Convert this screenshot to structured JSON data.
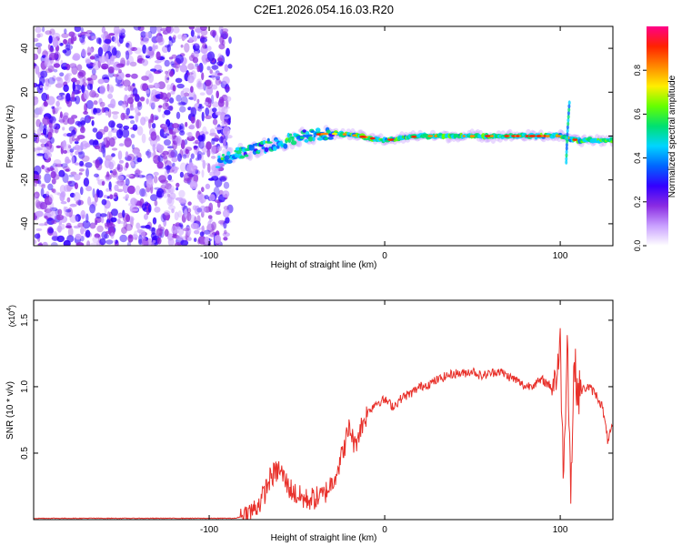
{
  "title": "C2E1.2026.054.16.03.R20",
  "chart_data": [
    {
      "type": "heatmap",
      "title": "C2E1.2026.054.16.03.R20",
      "xlabel": "Height of straight line (km)",
      "ylabel": "Frequency (Hz)",
      "xlim": [
        -200,
        130
      ],
      "ylim": [
        -50,
        50
      ],
      "xticks": [
        -100,
        0,
        100
      ],
      "yticks": [
        -40,
        -20,
        0,
        20,
        40
      ],
      "colorbar": {
        "label": "Normalized spectral amplitude",
        "range": [
          0,
          1
        ],
        "ticks": [
          0.0,
          0.2,
          0.4,
          0.6,
          0.8
        ],
        "colors": [
          "#ffffff",
          "#c9a0ff",
          "#8a2be2",
          "#3300ff",
          "#0066ff",
          "#00d5ff",
          "#00e070",
          "#66ff00",
          "#ffee00",
          "#ff8800",
          "#ff2200",
          "#ff0088"
        ]
      },
      "noise_region_x": [
        -200,
        -88
      ],
      "centerline": {
        "x": [
          -95,
          -85,
          -75,
          -65,
          -55,
          -45,
          -35,
          -25,
          -15,
          0,
          20,
          50,
          80,
          100,
          110,
          130
        ],
        "freq": [
          -12,
          -8,
          -6,
          -4,
          -2,
          0,
          1,
          1,
          0,
          -2,
          0,
          0,
          0,
          0,
          -2,
          -2
        ]
      }
    },
    {
      "type": "line",
      "xlabel": "Height of straight line (km)",
      "ylabel": "SNR (10 * v/v)",
      "yscale_label": "(x10^4)",
      "yscale_base": "(x10",
      "yscale_exp": "4",
      "xlim": [
        -200,
        130
      ],
      "ylim": [
        0,
        1.65
      ],
      "xticks": [
        -100,
        0,
        100
      ],
      "yticks": [
        0.5,
        1.0,
        1.5
      ],
      "series": [
        {
          "name": "SNR",
          "color": "#e8302a",
          "x": [
            -200,
            -150,
            -100,
            -85,
            -80,
            -75,
            -70,
            -65,
            -60,
            -55,
            -50,
            -45,
            -40,
            -35,
            -30,
            -25,
            -22,
            -20,
            -17,
            -15,
            -10,
            -5,
            0,
            5,
            10,
            15,
            20,
            25,
            30,
            35,
            40,
            45,
            50,
            55,
            60,
            65,
            70,
            75,
            80,
            85,
            90,
            95,
            98,
            100,
            102,
            104,
            106,
            108,
            110,
            113,
            116,
            120,
            124,
            127,
            130
          ],
          "y": [
            0.01,
            0.01,
            0.01,
            0.01,
            0.03,
            0.07,
            0.15,
            0.32,
            0.38,
            0.25,
            0.18,
            0.15,
            0.16,
            0.18,
            0.28,
            0.45,
            0.6,
            0.7,
            0.55,
            0.65,
            0.8,
            0.88,
            0.9,
            0.85,
            0.92,
            0.95,
            1.0,
            1.02,
            1.05,
            1.08,
            1.1,
            1.1,
            1.12,
            1.08,
            1.1,
            1.12,
            1.08,
            1.05,
            1.0,
            1.02,
            1.05,
            1.0,
            1.1,
            1.3,
            0.3,
            1.45,
            0.2,
            1.2,
            0.95,
            0.98,
            1.0,
            0.95,
            0.85,
            0.6,
            0.7
          ]
        }
      ]
    }
  ]
}
